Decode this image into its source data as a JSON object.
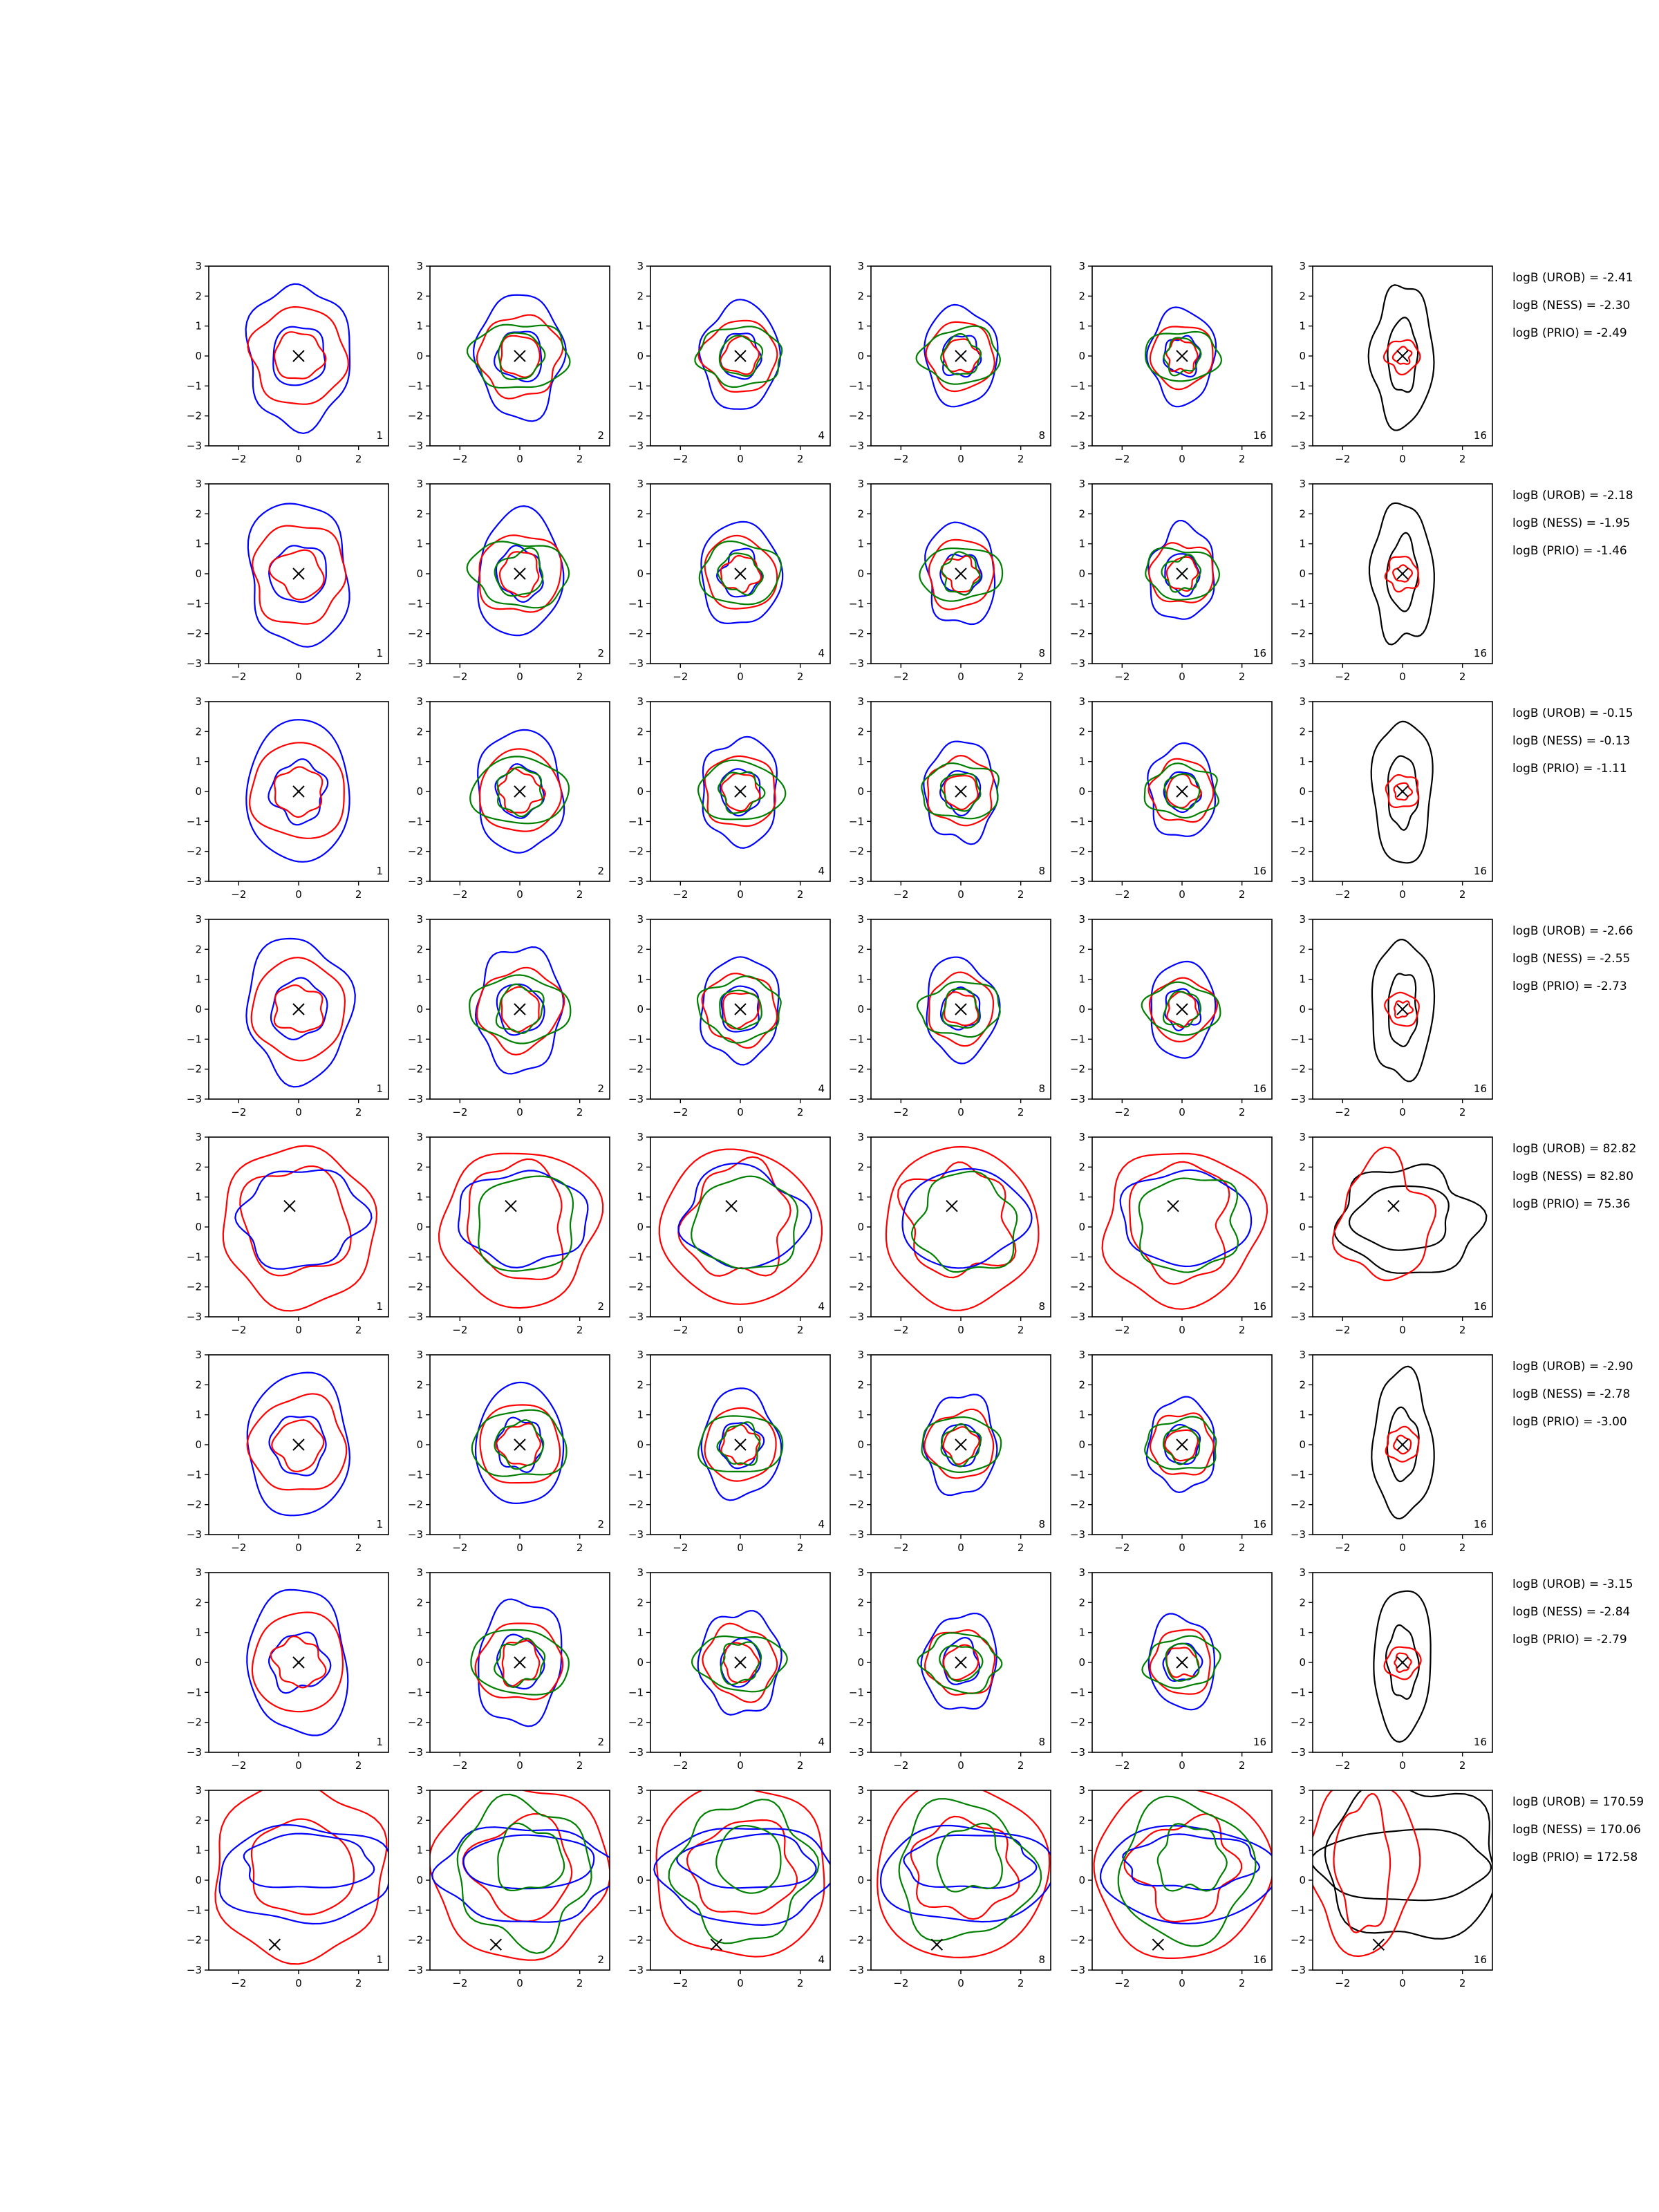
{
  "chart_data": {
    "type": "contour",
    "description_layout": "8 rows x 6 columns grid of 2D contour panels",
    "xlim": [
      -3,
      3
    ],
    "ylim": [
      -3,
      3
    ],
    "xticks": [
      -2,
      0,
      2
    ],
    "yticks": [
      -3,
      -2,
      -1,
      0,
      1,
      2,
      3
    ],
    "grid": false,
    "series_colors": {
      "red": "#ff0000",
      "blue": "#0000ff",
      "green": "#008000",
      "black": "#000000"
    },
    "column_labels": [
      "1",
      "2",
      "4",
      "8",
      "16",
      "16"
    ],
    "rows": [
      {
        "marker": [
          0,
          0
        ],
        "logB": {
          "UROB": "-2.41",
          "NESS": "-2.30",
          "PRIO": "-2.49"
        }
      },
      {
        "marker": [
          0,
          0
        ],
        "logB": {
          "UROB": "-2.18",
          "NESS": "-1.95",
          "PRIO": "-1.46"
        }
      },
      {
        "marker": [
          0,
          0
        ],
        "logB": {
          "UROB": "-0.15",
          "NESS": "-0.13",
          "PRIO": "-1.11"
        }
      },
      {
        "marker": [
          0,
          0
        ],
        "logB": {
          "UROB": "-2.66",
          "NESS": "-2.55",
          "PRIO": "-2.73"
        }
      },
      {
        "marker": [
          -0.3,
          0.7
        ],
        "logB": {
          "UROB": "82.82",
          "NESS": "82.80",
          "PRIO": "75.36"
        }
      },
      {
        "marker": [
          0,
          0
        ],
        "logB": {
          "UROB": "-2.90",
          "NESS": "-2.78",
          "PRIO": "-3.00"
        }
      },
      {
        "marker": [
          0,
          0
        ],
        "logB": {
          "UROB": "-3.15",
          "NESS": "-2.84",
          "PRIO": "-2.79"
        }
      },
      {
        "marker": [
          -0.8,
          -2.15
        ],
        "logB": {
          "UROB": "170.59",
          "NESS": "170.06",
          "PRIO": "172.58"
        }
      }
    ],
    "logB_prefixes": {
      "UROB": "logB (UROB) = ",
      "NESS": "logB (NESS) = ",
      "PRIO": "logB (PRIO) = "
    }
  }
}
